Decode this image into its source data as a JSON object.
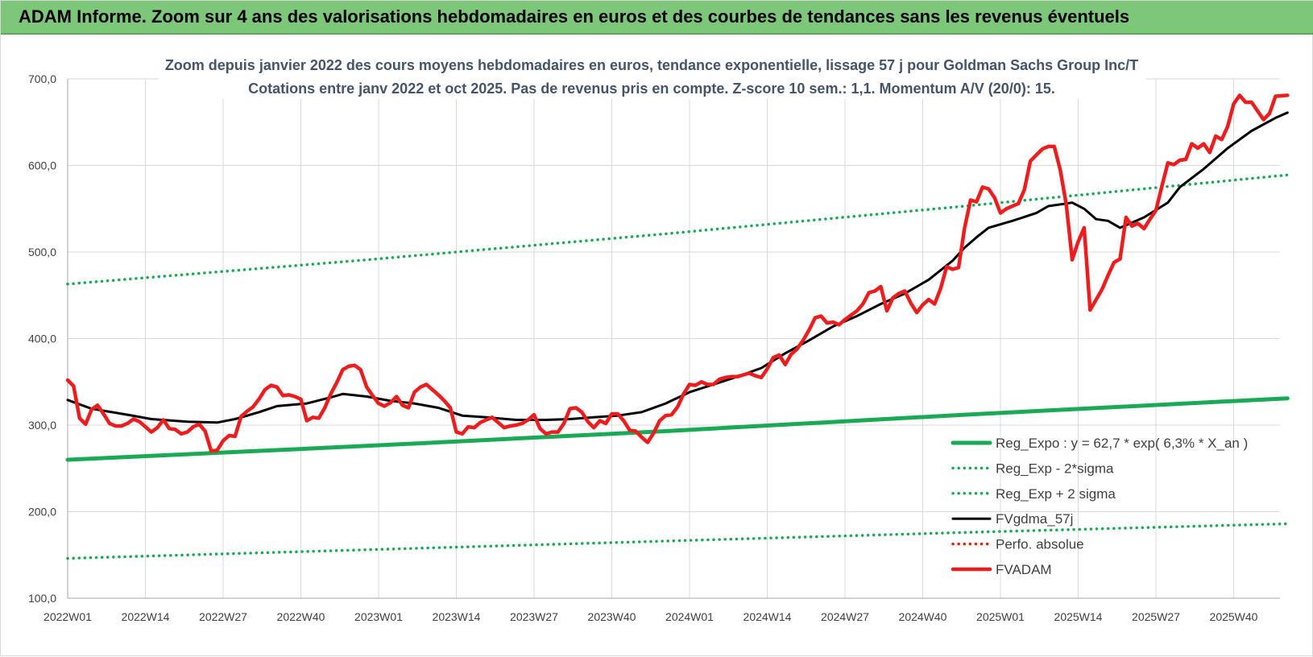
{
  "header": {
    "title": "ADAM Informe. Zoom sur 4 ans des valorisations hebdomadaires en euros et des courbes de tendances sans les revenus éventuels"
  },
  "colors": {
    "header_bg": "#7dc77a",
    "reg_expo": "#1aaa55",
    "fvgdma": "#000000",
    "perfo": "#e0201b",
    "fvadam": "#ee1c1c",
    "grid": "#d9d9d9",
    "title_text": "#44546a"
  },
  "chart_data": {
    "type": "line",
    "title_lines": [
      "Zoom depuis janvier 2022 des cours moyens hebdomadaires en euros, tendance exponentielle, lissage 57 j pour Goldman Sachs Group Inc/T",
      "Cotations entre janv 2022 et oct 2025. Pas de revenus pris en compte. Z-score 10 sem.: 1,1. Momentum A/V (20/0): 15."
    ],
    "ylim": [
      100,
      700
    ],
    "yticks": [
      "100,0",
      "200,0",
      "300,0",
      "400,0",
      "500,0",
      "600,0",
      "700,0"
    ],
    "xticks": [
      {
        "label": "2022W01",
        "week": 0
      },
      {
        "label": "2022W14",
        "week": 13
      },
      {
        "label": "2022W27",
        "week": 26
      },
      {
        "label": "2022W40",
        "week": 39
      },
      {
        "label": "2023W01",
        "week": 52
      },
      {
        "label": "2023W14",
        "week": 65
      },
      {
        "label": "2023W27",
        "week": 78
      },
      {
        "label": "2023W40",
        "week": 91
      },
      {
        "label": "2024W01",
        "week": 104
      },
      {
        "label": "2024W14",
        "week": 117
      },
      {
        "label": "2024W27",
        "week": 130
      },
      {
        "label": "2024W40",
        "week": 143
      },
      {
        "label": "2025W01",
        "week": 156
      },
      {
        "label": "2025W14",
        "week": 169
      },
      {
        "label": "2025W27",
        "week": 182
      },
      {
        "label": "2025W40",
        "week": 195
      }
    ],
    "week_range": [
      0,
      204
    ],
    "grid": true,
    "legend_position": "bottom-right",
    "series": [
      {
        "name": "Reg_Expo : y = 62,7 * exp( 6,3% * X_an )",
        "style": "solid-thick",
        "color": "#1aaa55",
        "points": [
          [
            0,
            260
          ],
          [
            50,
            276
          ],
          [
            100,
            293
          ],
          [
            150,
            312
          ],
          [
            204,
            331
          ]
        ]
      },
      {
        "name": "Reg_Exp - 2*sigma",
        "style": "dotted",
        "color": "#1aaa55",
        "points": [
          [
            0,
            146
          ],
          [
            50,
            156
          ],
          [
            100,
            166
          ],
          [
            150,
            176
          ],
          [
            204,
            186
          ]
        ]
      },
      {
        "name": "Reg_Exp + 2 sigma",
        "style": "dotted",
        "color": "#1aaa55",
        "points": [
          [
            0,
            463
          ],
          [
            50,
            491
          ],
          [
            100,
            521
          ],
          [
            150,
            553
          ],
          [
            204,
            589
          ]
        ]
      },
      {
        "name": "FVgdma_57j",
        "style": "solid",
        "color": "#000000",
        "points": [
          [
            0,
            329
          ],
          [
            4,
            319
          ],
          [
            10,
            312
          ],
          [
            14,
            307
          ],
          [
            20,
            304
          ],
          [
            25,
            303
          ],
          [
            28,
            307
          ],
          [
            32,
            315
          ],
          [
            35,
            322
          ],
          [
            40,
            325
          ],
          [
            44,
            332
          ],
          [
            46,
            336
          ],
          [
            50,
            333
          ],
          [
            54,
            328
          ],
          [
            58,
            325
          ],
          [
            62,
            320
          ],
          [
            66,
            311
          ],
          [
            70,
            309
          ],
          [
            75,
            306
          ],
          [
            80,
            306
          ],
          [
            84,
            307
          ],
          [
            88,
            309
          ],
          [
            92,
            311
          ],
          [
            96,
            315
          ],
          [
            100,
            325
          ],
          [
            104,
            338
          ],
          [
            108,
            347
          ],
          [
            112,
            356
          ],
          [
            116,
            366
          ],
          [
            120,
            383
          ],
          [
            124,
            398
          ],
          [
            128,
            414
          ],
          [
            132,
            426
          ],
          [
            136,
            440
          ],
          [
            140,
            452
          ],
          [
            144,
            468
          ],
          [
            148,
            490
          ],
          [
            150,
            505
          ],
          [
            152,
            517
          ],
          [
            154,
            528
          ],
          [
            158,
            536
          ],
          [
            162,
            545
          ],
          [
            164,
            553
          ],
          [
            168,
            557
          ],
          [
            170,
            550
          ],
          [
            172,
            538
          ],
          [
            174,
            536
          ],
          [
            176,
            528
          ],
          [
            180,
            540
          ],
          [
            184,
            557
          ],
          [
            186,
            575
          ],
          [
            190,
            596
          ],
          [
            194,
            620
          ],
          [
            198,
            640
          ],
          [
            202,
            655
          ],
          [
            204,
            661
          ]
        ]
      },
      {
        "name": "Perfo. absolue",
        "style": "dotted",
        "color": "#e0201b",
        "points": []
      },
      {
        "name": "FVADAM",
        "style": "solid-thick",
        "color": "#ee1c1c",
        "points": [
          [
            0,
            352
          ],
          [
            1,
            345
          ],
          [
            2,
            308
          ],
          [
            3,
            301
          ],
          [
            4,
            318
          ],
          [
            5,
            323
          ],
          [
            6,
            313
          ],
          [
            7,
            302
          ],
          [
            8,
            299
          ],
          [
            9,
            299
          ],
          [
            10,
            302
          ],
          [
            11,
            307
          ],
          [
            12,
            304
          ],
          [
            13,
            298
          ],
          [
            14,
            292
          ],
          [
            15,
            297
          ],
          [
            16,
            306
          ],
          [
            17,
            296
          ],
          [
            18,
            295
          ],
          [
            19,
            290
          ],
          [
            20,
            292
          ],
          [
            21,
            298
          ],
          [
            22,
            301
          ],
          [
            23,
            293
          ],
          [
            24,
            270
          ],
          [
            25,
            271
          ],
          [
            26,
            282
          ],
          [
            27,
            288
          ],
          [
            28,
            287
          ],
          [
            29,
            310
          ],
          [
            30,
            316
          ],
          [
            31,
            321
          ],
          [
            32,
            330
          ],
          [
            33,
            341
          ],
          [
            34,
            346
          ],
          [
            35,
            344
          ],
          [
            36,
            334
          ],
          [
            37,
            335
          ],
          [
            38,
            333
          ],
          [
            39,
            330
          ],
          [
            40,
            305
          ],
          [
            41,
            309
          ],
          [
            42,
            308
          ],
          [
            43,
            320
          ],
          [
            44,
            336
          ],
          [
            45,
            349
          ],
          [
            46,
            364
          ],
          [
            47,
            368
          ],
          [
            48,
            369
          ],
          [
            49,
            364
          ],
          [
            50,
            344
          ],
          [
            51,
            334
          ],
          [
            52,
            325
          ],
          [
            53,
            322
          ],
          [
            54,
            326
          ],
          [
            55,
            333
          ],
          [
            56,
            323
          ],
          [
            57,
            320
          ],
          [
            58,
            338
          ],
          [
            59,
            344
          ],
          [
            60,
            347
          ],
          [
            61,
            341
          ],
          [
            62,
            335
          ],
          [
            63,
            328
          ],
          [
            64,
            320
          ],
          [
            65,
            292
          ],
          [
            66,
            290
          ],
          [
            67,
            298
          ],
          [
            68,
            297
          ],
          [
            69,
            303
          ],
          [
            70,
            306
          ],
          [
            71,
            309
          ],
          [
            72,
            303
          ],
          [
            73,
            297
          ],
          [
            74,
            299
          ],
          [
            75,
            300
          ],
          [
            76,
            302
          ],
          [
            77,
            306
          ],
          [
            78,
            312
          ],
          [
            79,
            296
          ],
          [
            80,
            290
          ],
          [
            81,
            292
          ],
          [
            82,
            292
          ],
          [
            83,
            302
          ],
          [
            84,
            319
          ],
          [
            85,
            320
          ],
          [
            86,
            315
          ],
          [
            87,
            304
          ],
          [
            88,
            297
          ],
          [
            89,
            305
          ],
          [
            90,
            302
          ],
          [
            91,
            313
          ],
          [
            92,
            313
          ],
          [
            93,
            305
          ],
          [
            94,
            294
          ],
          [
            95,
            293
          ],
          [
            96,
            286
          ],
          [
            97,
            280
          ],
          [
            98,
            291
          ],
          [
            99,
            305
          ],
          [
            100,
            311
          ],
          [
            101,
            312
          ],
          [
            102,
            321
          ],
          [
            103,
            336
          ],
          [
            104,
            347
          ],
          [
            105,
            346
          ],
          [
            106,
            350
          ],
          [
            107,
            347
          ],
          [
            108,
            347
          ],
          [
            109,
            353
          ],
          [
            110,
            355
          ],
          [
            111,
            356
          ],
          [
            112,
            356
          ],
          [
            113,
            358
          ],
          [
            114,
            360
          ],
          [
            115,
            357
          ],
          [
            116,
            355
          ],
          [
            117,
            365
          ],
          [
            118,
            378
          ],
          [
            119,
            381
          ],
          [
            120,
            370
          ],
          [
            121,
            382
          ],
          [
            122,
            388
          ],
          [
            123,
            398
          ],
          [
            124,
            410
          ],
          [
            125,
            424
          ],
          [
            126,
            426
          ],
          [
            127,
            418
          ],
          [
            128,
            419
          ],
          [
            129,
            416
          ],
          [
            130,
            422
          ],
          [
            131,
            427
          ],
          [
            132,
            432
          ],
          [
            133,
            440
          ],
          [
            134,
            453
          ],
          [
            135,
            455
          ],
          [
            136,
            460
          ],
          [
            137,
            432
          ],
          [
            138,
            447
          ],
          [
            139,
            452
          ],
          [
            140,
            455
          ],
          [
            141,
            441
          ],
          [
            142,
            430
          ],
          [
            143,
            439
          ],
          [
            144,
            445
          ],
          [
            145,
            440
          ],
          [
            146,
            458
          ],
          [
            147,
            483
          ],
          [
            148,
            480
          ],
          [
            149,
            482
          ],
          [
            150,
            528
          ],
          [
            151,
            560
          ],
          [
            152,
            558
          ],
          [
            153,
            575
          ],
          [
            154,
            573
          ],
          [
            155,
            563
          ],
          [
            156,
            545
          ],
          [
            157,
            550
          ],
          [
            158,
            553
          ],
          [
            159,
            556
          ],
          [
            160,
            572
          ],
          [
            161,
            605
          ],
          [
            162,
            612
          ],
          [
            163,
            619
          ],
          [
            164,
            622
          ],
          [
            165,
            622
          ],
          [
            166,
            595
          ],
          [
            167,
            555
          ],
          [
            168,
            491
          ],
          [
            169,
            512
          ],
          [
            170,
            528
          ],
          [
            171,
            433
          ],
          [
            172,
            445
          ],
          [
            173,
            457
          ],
          [
            174,
            473
          ],
          [
            175,
            488
          ],
          [
            176,
            492
          ],
          [
            177,
            540
          ],
          [
            178,
            530
          ],
          [
            179,
            533
          ],
          [
            180,
            527
          ],
          [
            181,
            538
          ],
          [
            182,
            548
          ],
          [
            183,
            576
          ],
          [
            184,
            603
          ],
          [
            185,
            601
          ],
          [
            186,
            606
          ],
          [
            187,
            607
          ],
          [
            188,
            625
          ],
          [
            189,
            620
          ],
          [
            190,
            625
          ],
          [
            191,
            615
          ],
          [
            192,
            634
          ],
          [
            193,
            630
          ],
          [
            194,
            645
          ],
          [
            195,
            671
          ],
          [
            196,
            681
          ],
          [
            197,
            673
          ],
          [
            198,
            673
          ],
          [
            199,
            663
          ],
          [
            200,
            653
          ],
          [
            201,
            660
          ],
          [
            202,
            680
          ],
          [
            204,
            681
          ]
        ]
      }
    ]
  }
}
